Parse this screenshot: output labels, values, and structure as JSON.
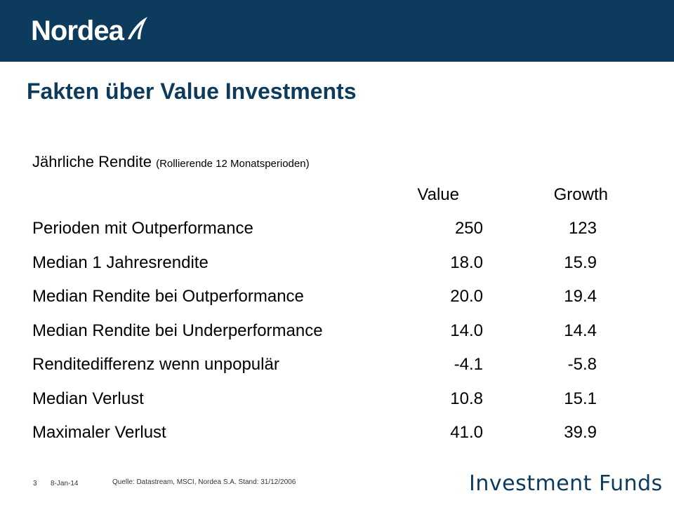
{
  "header": {
    "logo_text": "Nordea",
    "logo_icon": "sail-icon",
    "color": "#0c3b5e"
  },
  "title": "Fakten über Value Investments",
  "subtitle": {
    "main": "Jährliche Rendite",
    "note": "(Rollierende 12 Monatsperioden)"
  },
  "table": {
    "columns": [
      "Value",
      "Growth"
    ],
    "rows": [
      {
        "label": "Perioden mit Outperformance",
        "value": "250",
        "growth": "123"
      },
      {
        "label": "Median 1 Jahresrendite",
        "value": "18.0",
        "growth": "15.9"
      },
      {
        "label": "Median Rendite bei Outperformance",
        "value": "20.0",
        "growth": "19.4"
      },
      {
        "label": "Median Rendite bei Underperformance",
        "value": "14.0",
        "growth": "14.4"
      },
      {
        "label": "Renditedifferenz wenn unpopulär",
        "value": "-4.1",
        "growth": "-5.8"
      },
      {
        "label": "Median Verlust",
        "value": "10.8",
        "growth": "15.1"
      },
      {
        "label": "Maximaler Verlust",
        "value": "41.0",
        "growth": "39.9"
      }
    ]
  },
  "footer": {
    "page_number": "3",
    "date": "8-Jan-14",
    "source": "Quelle: Datastream, MSCI, Nordea S.A.  Stand: 31/12/2006",
    "brand": "Investment Funds"
  }
}
